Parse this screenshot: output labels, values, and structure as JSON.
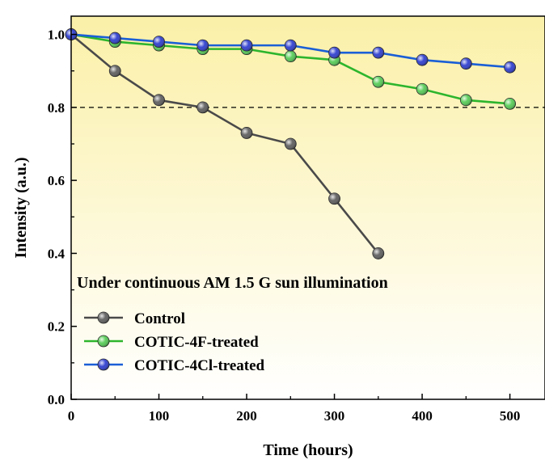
{
  "chart_data": {
    "type": "line",
    "xlabel": "Time (hours)",
    "ylabel": "Intensity (a.u.)",
    "xlim": [
      0,
      540
    ],
    "ylim": [
      0,
      1.05
    ],
    "xticks": [
      0,
      100,
      200,
      300,
      400,
      500
    ],
    "yticks": [
      0.0,
      0.2,
      0.4,
      0.6,
      0.8,
      1.0
    ],
    "xtick_labels": [
      "0",
      "100",
      "200",
      "300",
      "400",
      "500"
    ],
    "ytick_labels": [
      "0.0",
      "0.2",
      "0.4",
      "0.6",
      "0.8",
      "1.0"
    ],
    "grid": false,
    "legend_position": "lower-left",
    "reference_line": {
      "y": 0.8,
      "style": "dashed"
    },
    "annotation": "Under continuous AM 1.5 G sun illumination",
    "background_gradient": [
      "#fbf0a8",
      "#ffffff"
    ],
    "series": [
      {
        "name": "Control",
        "color": "#4a4a4a",
        "marker_color": "#555555",
        "x": [
          0,
          50,
          100,
          150,
          200,
          250,
          300,
          350
        ],
        "y": [
          1.0,
          0.9,
          0.82,
          0.8,
          0.73,
          0.7,
          0.55,
          0.4
        ]
      },
      {
        "name": "COTIC-4F-treated",
        "color": "#2db52d",
        "marker_color": "#4cc94c",
        "x": [
          0,
          50,
          100,
          150,
          200,
          250,
          300,
          350,
          400,
          450,
          500
        ],
        "y": [
          1.0,
          0.98,
          0.97,
          0.96,
          0.96,
          0.94,
          0.93,
          0.87,
          0.85,
          0.82,
          0.81
        ]
      },
      {
        "name": "COTIC-4Cl-treated",
        "color": "#1a5fd6",
        "marker_color": "#2233cc",
        "x": [
          0,
          50,
          100,
          150,
          200,
          250,
          300,
          350,
          400,
          450,
          500
        ],
        "y": [
          1.0,
          0.99,
          0.98,
          0.97,
          0.97,
          0.97,
          0.95,
          0.95,
          0.93,
          0.92,
          0.91
        ]
      }
    ]
  }
}
